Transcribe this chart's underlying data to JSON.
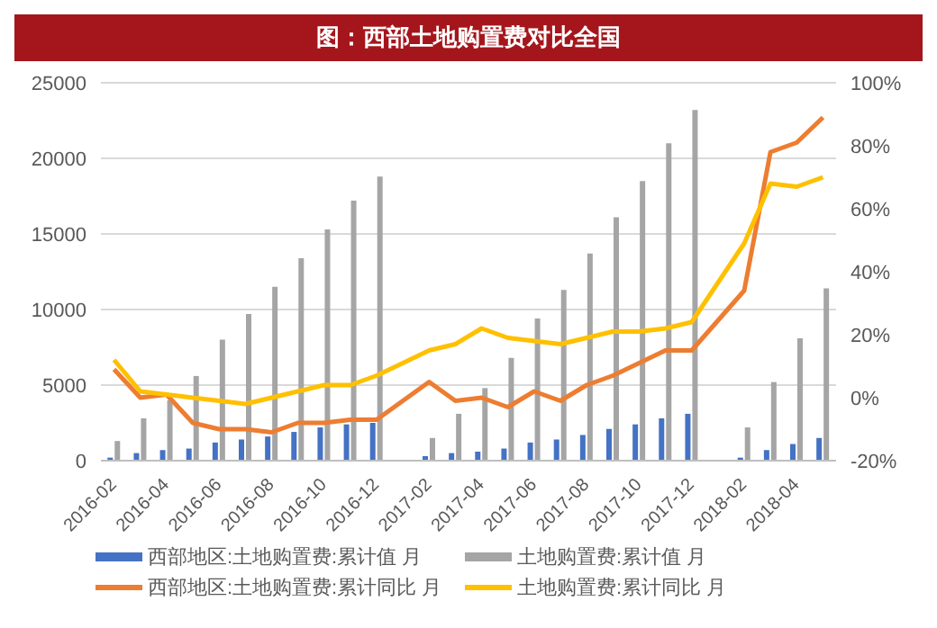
{
  "chart_data": {
    "type": "bar",
    "title": "图：西部土地购置费对比全国",
    "categories": [
      "2016-02",
      null,
      "2016-04",
      null,
      "2016-06",
      null,
      "2016-08",
      null,
      "2016-10",
      null,
      "2016-12",
      null,
      "2017-02",
      null,
      "2017-04",
      null,
      "2017-06",
      null,
      "2017-08",
      null,
      "2017-10",
      null,
      "2017-12",
      null,
      "2018-02",
      null,
      "2018-04",
      null
    ],
    "series": [
      {
        "name": "西部地区:土地购置费:累计值 月",
        "color": "#4472c4",
        "values": [
          200,
          500,
          700,
          800,
          1200,
          1400,
          1600,
          1900,
          2200,
          2400,
          2500,
          null,
          300,
          500,
          600,
          800,
          1200,
          1400,
          1700,
          2100,
          2400,
          2800,
          3100,
          null,
          200,
          700,
          1100,
          1500
        ]
      },
      {
        "name": "土地购置费:累计值 月",
        "color": "#a5a5a5",
        "values": [
          1300,
          2800,
          4000,
          5600,
          8000,
          9700,
          11500,
          13400,
          15300,
          17200,
          18800,
          null,
          1500,
          3100,
          4800,
          6800,
          9400,
          11300,
          13700,
          16100,
          18500,
          21000,
          23200,
          null,
          2200,
          5200,
          8100,
          11400
        ]
      },
      {
        "name": "西部地区:土地购置费:累计同比 月",
        "type": "line",
        "axis": "y2",
        "color": "#ed7d31",
        "values": [
          9,
          0,
          1,
          -8,
          -10,
          -10,
          -11,
          -8,
          -8,
          -7,
          -7,
          null,
          5,
          -1,
          0,
          -3,
          2,
          -1,
          4,
          7,
          11,
          15,
          15,
          null,
          34,
          78,
          81,
          89
        ]
      },
      {
        "name": "土地购置费:累计同比 月",
        "type": "line",
        "axis": "y2",
        "color": "#ffc000",
        "values": [
          12,
          2,
          1,
          0,
          -1,
          -2,
          0,
          2,
          4,
          4,
          7,
          null,
          15,
          17,
          22,
          19,
          18,
          17,
          19,
          21,
          21,
          22,
          24,
          null,
          49,
          68,
          67,
          70
        ]
      }
    ],
    "ylim": [
      0,
      25000
    ],
    "yticks": [
      0,
      5000,
      10000,
      15000,
      20000,
      25000
    ],
    "y2lim": [
      -20,
      100
    ],
    "y2ticks": [
      {
        "value": -20,
        "label": "-20%"
      },
      {
        "value": 0,
        "label": "0%"
      },
      {
        "value": 20,
        "label": "20%"
      },
      {
        "value": 40,
        "label": "40%"
      },
      {
        "value": 60,
        "label": "60%"
      },
      {
        "value": 80,
        "label": "80%"
      },
      {
        "value": 100,
        "label": "100%"
      }
    ],
    "grid": "y",
    "legend": "bottom"
  }
}
